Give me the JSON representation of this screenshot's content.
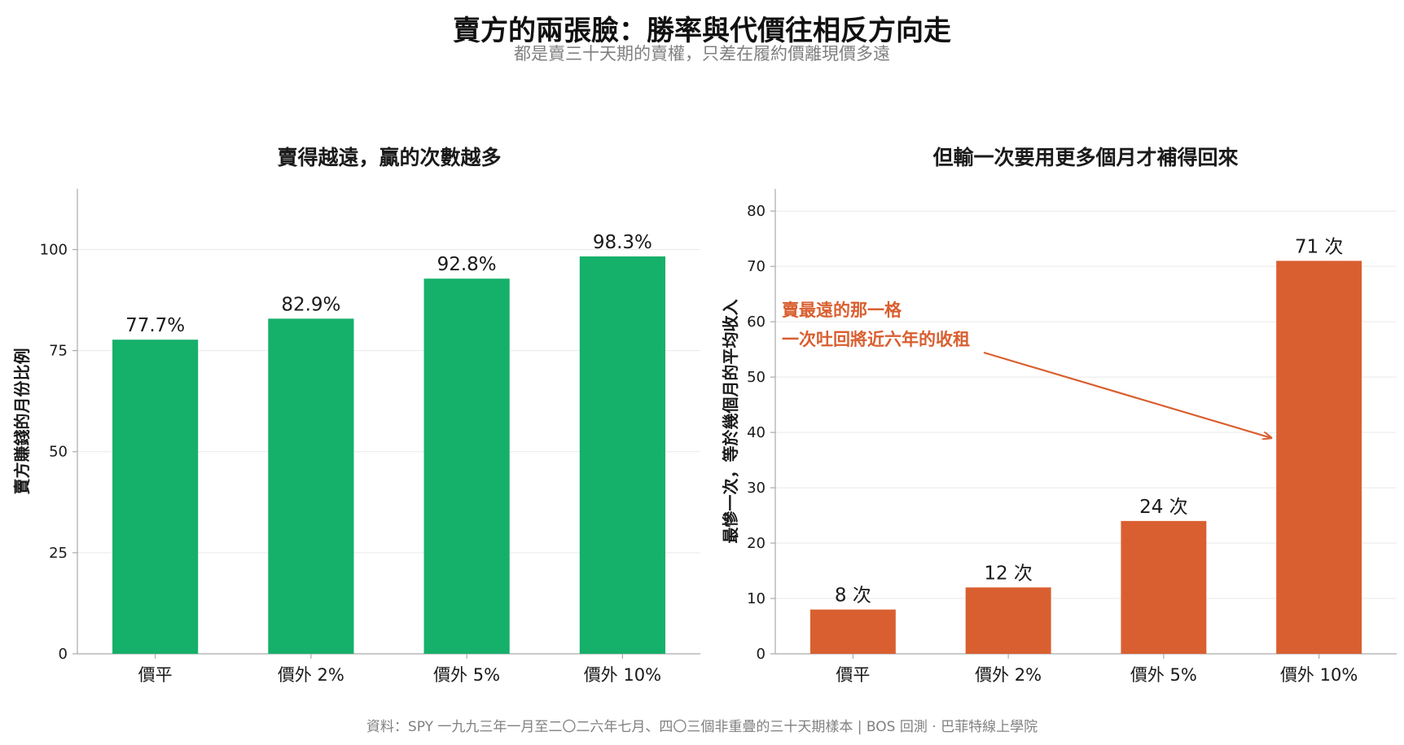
{
  "figure": {
    "title": "賣方的兩張臉：勝率與代價往相反方向走",
    "subtitle": "都是賣三十天期的賣權，只差在履約價離現價多遠",
    "footer": "資料：SPY 一九九三年一月至二〇二六年七月、四〇三個非重疊的三十天期樣本 | BOS 回測 · 巴菲特線上學院"
  },
  "chart_data": [
    {
      "type": "bar",
      "title": "賣得越遠，贏的次數越多",
      "xlabel": "",
      "ylabel": "賣方賺錢的月份比例",
      "categories": [
        "價平",
        "價外 2%",
        "價外 5%",
        "價外 10%"
      ],
      "values": [
        77.7,
        82.9,
        92.8,
        98.3
      ],
      "data_labels": [
        "77.7%",
        "82.9%",
        "92.8%",
        "98.3%"
      ],
      "ylim": [
        0,
        115
      ],
      "yticks": [
        0,
        25,
        50,
        75,
        100
      ],
      "color": "#15b06a",
      "grid": "horizontal"
    },
    {
      "type": "bar",
      "title": "但輸一次要用更多個月才補得回來",
      "xlabel": "",
      "ylabel": "最慘一次，等於幾個月的平均收入",
      "categories": [
        "價平",
        "價外 2%",
        "價外 5%",
        "價外 10%"
      ],
      "values": [
        8,
        12,
        24,
        71
      ],
      "data_labels": [
        "8 次",
        "12 次",
        "24 次",
        "71 次"
      ],
      "ylim": [
        0,
        84
      ],
      "yticks": [
        0,
        10,
        20,
        30,
        40,
        50,
        60,
        70,
        80
      ],
      "color": "#d95f30",
      "grid": "horizontal",
      "annotation": {
        "lines": [
          "賣最遠的那一格",
          "一次吐回將近六年的收租"
        ],
        "arrow_to_category": "價外 10%",
        "arrow_to_value": 39,
        "color": "#d95f30"
      }
    }
  ]
}
